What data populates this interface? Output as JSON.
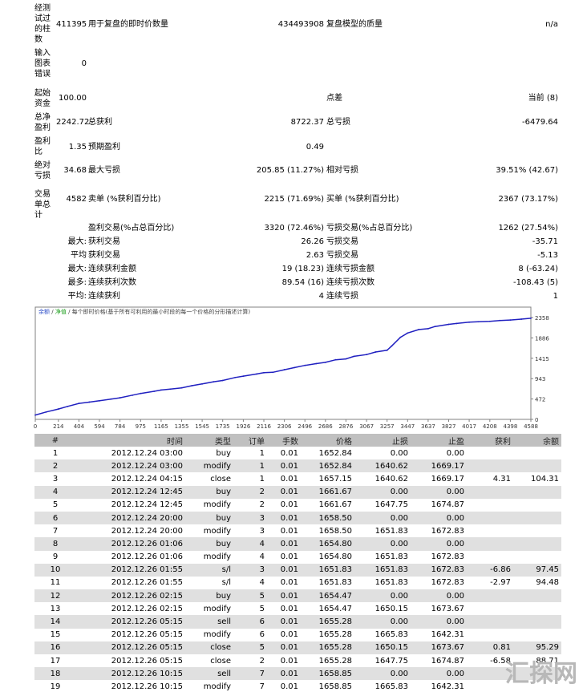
{
  "summary": {
    "rows": [
      {
        "top": 4,
        "label": "经测试过的柱数",
        "c1v": "411395",
        "c2l": "用于复盘的即时价数量",
        "c2v": "434493908",
        "c3l": "复盘模型的质量",
        "c3v": "n/a"
      },
      {
        "top": 60,
        "label": "输入图表错误",
        "c1v": "0",
        "c2l": "",
        "c2v": "",
        "c3l": "",
        "c3v": ""
      },
      {
        "top": 110,
        "label": "起始资金",
        "c1v": "100.00",
        "c2l": "",
        "c2v": "",
        "c3l": "点差",
        "c3v": "当前 (8)"
      },
      {
        "top": 140,
        "label": "总净盈利",
        "c1v": "2242.72",
        "c2l": "总获利",
        "c2v": "8722.37",
        "c3l": "总亏损",
        "c3v": "-6479.64"
      },
      {
        "top": 170,
        "label": "盈利比",
        "c1v": "1.35",
        "c2l": "预期盈利",
        "c2v": "0.49",
        "c3l": "",
        "c3v": ""
      },
      {
        "top": 200,
        "label": "绝对亏损",
        "c1v": "34.68",
        "c2l": "最大亏损",
        "c2v": "205.85 (11.27%)",
        "c3l": "相对亏损",
        "c3v": "39.51% (42.67)"
      },
      {
        "top": 236,
        "label": "交易单总计",
        "c1v": "4582",
        "c2l": "卖单 (%获利百分比)",
        "c2v": "2215 (71.69%)",
        "c3l": "买单 (%获利百分比)",
        "c3v": "2367 (73.17%)"
      }
    ],
    "sub": [
      {
        "top": 278,
        "pre": "",
        "c2l": "盈利交易(%占总百分比)",
        "c2v": "3320 (72.46%)",
        "c3l": "亏损交易(%占总百分比)",
        "c3v": "1262 (27.54%)"
      },
      {
        "top": 295,
        "pre": "最大:",
        "c2l": "获利交易",
        "c2v": "26.26",
        "c3l": "亏损交易",
        "c3v": "-35.71"
      },
      {
        "top": 312,
        "pre": "平均",
        "c2l": "获利交易",
        "c2v": "2.63",
        "c3l": "亏损交易",
        "c3v": "-5.13"
      },
      {
        "top": 329,
        "pre": "最大:",
        "c2l": "连续获利金额",
        "c2v": "19 (18.23)",
        "c3l": "连续亏损金额",
        "c3v": "8 (-63.24)"
      },
      {
        "top": 346,
        "pre": "最多:",
        "c2l": "连续获利次数",
        "c2v": "89.54 (16)",
        "c3l": "连续亏损次数",
        "c3v": "-108.43 (5)"
      },
      {
        "top": 363,
        "pre": "平均:",
        "c2l": "连续获利",
        "c2v": "4",
        "c3l": "连续亏损",
        "c3v": "1"
      }
    ]
  },
  "chart_data": {
    "type": "line",
    "title": "余额 / 净值 / 每个即时价格(基于所有可利用的最小时段的每一个价格的分形描述计算)",
    "legend": [
      "余额",
      "净值"
    ],
    "title_parts": {
      "balance": "余额",
      "sep": "/",
      "equity": "净值",
      "rest": "/ 每个即时价格(基于所有可利用的最小时段的每一个价格的分形描述计算)"
    },
    "ylim": [
      0,
      2358
    ],
    "yticks": [
      0,
      472,
      943,
      1415,
      1886,
      2358
    ],
    "xticks": [
      0,
      214,
      404,
      594,
      784,
      975,
      1165,
      1355,
      1545,
      1735,
      1926,
      2116,
      2306,
      2496,
      2686,
      2876,
      3067,
      3257,
      3447,
      3637,
      3827,
      4017,
      4208,
      4398,
      4588
    ],
    "xlim": [
      0,
      4588
    ],
    "series": [
      {
        "name": "余额",
        "x": [
          0,
          100,
          214,
          300,
          404,
          500,
          594,
          700,
          784,
          900,
          975,
          1100,
          1165,
          1250,
          1355,
          1450,
          1545,
          1650,
          1735,
          1850,
          1926,
          2050,
          2116,
          2200,
          2306,
          2400,
          2496,
          2600,
          2686,
          2780,
          2876,
          2950,
          3067,
          3150,
          3257,
          3300,
          3380,
          3447,
          3550,
          3637,
          3700,
          3827,
          3900,
          4017,
          4100,
          4208,
          4300,
          4398,
          4500,
          4588
        ],
        "values": [
          100,
          170,
          240,
          300,
          370,
          400,
          430,
          470,
          500,
          560,
          600,
          650,
          680,
          700,
          730,
          780,
          820,
          870,
          900,
          970,
          1000,
          1050,
          1080,
          1090,
          1150,
          1200,
          1250,
          1290,
          1320,
          1380,
          1400,
          1460,
          1500,
          1560,
          1600,
          1700,
          1900,
          2000,
          2080,
          2100,
          2150,
          2200,
          2220,
          2250,
          2260,
          2270,
          2290,
          2300,
          2320,
          2342
        ]
      }
    ]
  },
  "table": {
    "headers": [
      "#",
      "时间",
      "类型",
      "订单",
      "手数",
      "价格",
      "止损",
      "止盈",
      "获利",
      "余额"
    ],
    "rows": [
      [
        "1",
        "2012.12.24 03:00",
        "buy",
        "1",
        "0.01",
        "1652.84",
        "0.00",
        "0.00",
        "",
        ""
      ],
      [
        "2",
        "2012.12.24 03:00",
        "modify",
        "1",
        "0.01",
        "1652.84",
        "1640.62",
        "1669.17",
        "",
        ""
      ],
      [
        "3",
        "2012.12.24 04:15",
        "close",
        "1",
        "0.01",
        "1657.15",
        "1640.62",
        "1669.17",
        "4.31",
        "104.31"
      ],
      [
        "4",
        "2012.12.24 12:45",
        "buy",
        "2",
        "0.01",
        "1661.67",
        "0.00",
        "0.00",
        "",
        ""
      ],
      [
        "5",
        "2012.12.24 12:45",
        "modify",
        "2",
        "0.01",
        "1661.67",
        "1647.75",
        "1674.87",
        "",
        ""
      ],
      [
        "6",
        "2012.12.24 20:00",
        "buy",
        "3",
        "0.01",
        "1658.50",
        "0.00",
        "0.00",
        "",
        ""
      ],
      [
        "7",
        "2012.12.24 20:00",
        "modify",
        "3",
        "0.01",
        "1658.50",
        "1651.83",
        "1672.83",
        "",
        ""
      ],
      [
        "8",
        "2012.12.26 01:06",
        "buy",
        "4",
        "0.01",
        "1654.80",
        "0.00",
        "0.00",
        "",
        ""
      ],
      [
        "9",
        "2012.12.26 01:06",
        "modify",
        "4",
        "0.01",
        "1654.80",
        "1651.83",
        "1672.83",
        "",
        ""
      ],
      [
        "10",
        "2012.12.26 01:55",
        "s/l",
        "3",
        "0.01",
        "1651.83",
        "1651.83",
        "1672.83",
        "-6.86",
        "97.45"
      ],
      [
        "11",
        "2012.12.26 01:55",
        "s/l",
        "4",
        "0.01",
        "1651.83",
        "1651.83",
        "1672.83",
        "-2.97",
        "94.48"
      ],
      [
        "12",
        "2012.12.26 02:15",
        "buy",
        "5",
        "0.01",
        "1654.47",
        "0.00",
        "0.00",
        "",
        ""
      ],
      [
        "13",
        "2012.12.26 02:15",
        "modify",
        "5",
        "0.01",
        "1654.47",
        "1650.15",
        "1673.67",
        "",
        ""
      ],
      [
        "14",
        "2012.12.26 05:15",
        "sell",
        "6",
        "0.01",
        "1655.28",
        "0.00",
        "0.00",
        "",
        ""
      ],
      [
        "15",
        "2012.12.26 05:15",
        "modify",
        "6",
        "0.01",
        "1655.28",
        "1665.83",
        "1642.31",
        "",
        ""
      ],
      [
        "16",
        "2012.12.26 05:15",
        "close",
        "5",
        "0.01",
        "1655.28",
        "1650.15",
        "1673.67",
        "0.81",
        "95.29"
      ],
      [
        "17",
        "2012.12.26 05:15",
        "close",
        "2",
        "0.01",
        "1655.28",
        "1647.75",
        "1674.87",
        "-6.58",
        "88.71"
      ],
      [
        "18",
        "2012.12.26 10:15",
        "sell",
        "7",
        "0.01",
        "1658.85",
        "0.00",
        "0.00",
        "",
        ""
      ],
      [
        "19",
        "2012.12.26 10:15",
        "modify",
        "7",
        "0.01",
        "1658.85",
        "1665.83",
        "1642.31",
        "",
        ""
      ]
    ]
  },
  "watermark": {
    "text": "汇探网"
  },
  "colors": {
    "balance_line": "#2020c0",
    "header_bg": "#c0c0c0",
    "alt_row": "#e0e0e0",
    "legend_balance": "#3050c8",
    "legend_equity": "#20a020",
    "watermark": "#b8b8b8"
  }
}
